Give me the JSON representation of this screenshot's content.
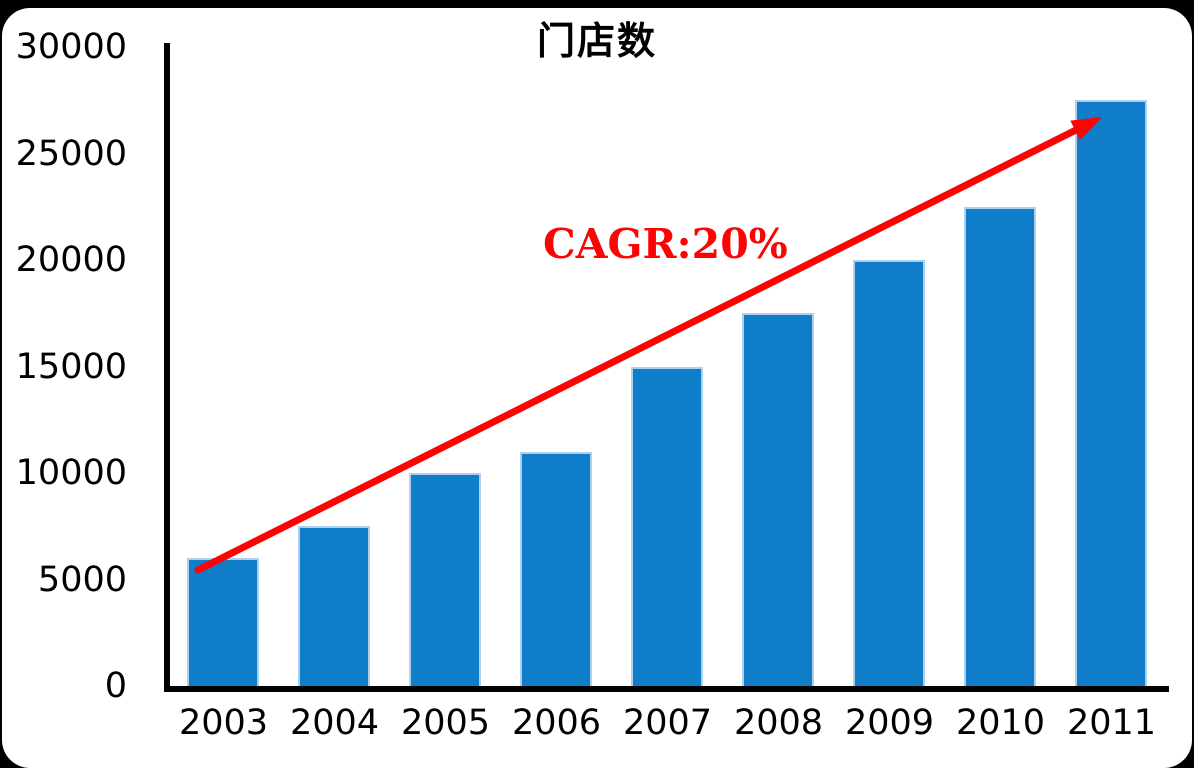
{
  "frame": {
    "background_color": "#000000",
    "canvas_color": "#ffffff"
  },
  "chart_data": {
    "type": "bar",
    "title": "门店数",
    "categories": [
      "2003",
      "2004",
      "2005",
      "2006",
      "2007",
      "2008",
      "2009",
      "2010",
      "2011"
    ],
    "values": [
      6000,
      7500,
      10000,
      11000,
      15000,
      17500,
      20000,
      22500,
      27500
    ],
    "xlabel": "",
    "ylabel": "",
    "ylim": [
      0,
      30000
    ],
    "yticks": [
      0,
      5000,
      10000,
      15000,
      20000,
      25000,
      30000
    ],
    "grid": false,
    "legend": "none",
    "bar_color": "#0f7dc8",
    "bar_edge_color": "#aed0ec",
    "axis_color": "#000000",
    "annotation": {
      "text": "CAGR:20%",
      "color": "#fb0404",
      "arrow": {
        "from": "top of 2003 bar",
        "to": "top of 2011 bar",
        "color": "#fb0404"
      }
    }
  }
}
